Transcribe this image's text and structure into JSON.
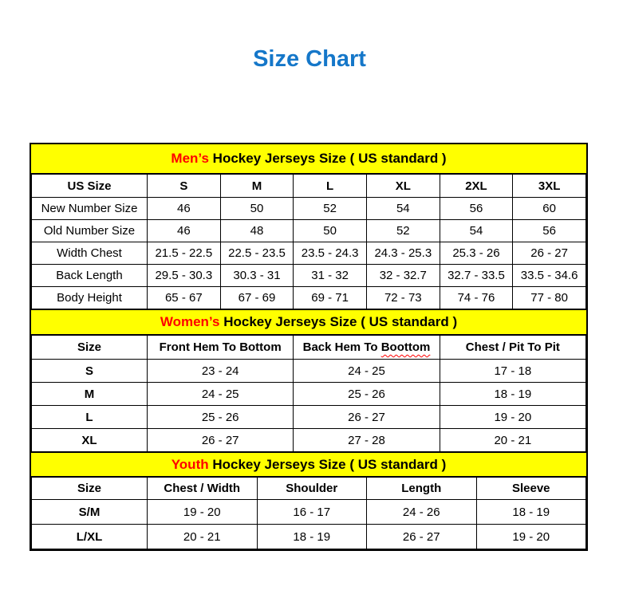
{
  "page_title": "Size Chart",
  "colors": {
    "title_text": "#1577C9",
    "section_band_bg": "#FFFF00",
    "section_accent_text": "#FF0000",
    "table_border": "#000000",
    "spellcheck_underline": "#FF0000"
  },
  "tables": [
    {
      "id": "mens",
      "band": {
        "accent": "Men’s",
        "rest": " Hockey Jerseys Size ( US standard )"
      },
      "columns": [
        "US Size",
        "S",
        "M",
        "L",
        "XL",
        "2XL",
        "3XL"
      ],
      "rows": [
        {
          "label": "New Number Size",
          "values": [
            "46",
            "50",
            "52",
            "54",
            "56",
            "60"
          ]
        },
        {
          "label": "Old Number Size",
          "values": [
            "46",
            "48",
            "50",
            "52",
            "54",
            "56"
          ]
        },
        {
          "label": "Width Chest",
          "values": [
            "21.5 - 22.5",
            "22.5 - 23.5",
            "23.5 - 24.3",
            "24.3 - 25.3",
            "25.3 - 26",
            "26 - 27"
          ]
        },
        {
          "label": "Back Length",
          "values": [
            "29.5 - 30.3",
            "30.3 - 31",
            "31 - 32",
            "32 - 32.7",
            "32.7 - 33.5",
            "33.5 - 34.6"
          ]
        },
        {
          "label": "Body Height",
          "values": [
            "65 - 67",
            "67 - 69",
            "69 - 71",
            "72 - 73",
            "74 - 76",
            "77 - 80"
          ]
        }
      ]
    },
    {
      "id": "womens",
      "band": {
        "accent": "Women’s",
        "rest": " Hockey Jerseys Size ( US standard )"
      },
      "columns": [
        "Size",
        "Front Hem To Bottom",
        "Back Hem To Boottom",
        "Chest / Pit To Pit"
      ],
      "spellcheck": {
        "column_index": 2,
        "prefix": "Back Hem To ",
        "word": "Boottom"
      },
      "rows": [
        {
          "label": "S",
          "values": [
            "23 - 24",
            "24 - 25",
            "17 - 18"
          ]
        },
        {
          "label": "M",
          "values": [
            "24 - 25",
            "25 - 26",
            "18 - 19"
          ]
        },
        {
          "label": "L",
          "values": [
            "25 - 26",
            "26 - 27",
            "19 - 20"
          ]
        },
        {
          "label": "XL",
          "values": [
            "26 - 27",
            "27 - 28",
            "20 - 21"
          ]
        }
      ]
    },
    {
      "id": "youth",
      "band": {
        "accent": "Youth",
        "rest": " Hockey Jerseys Size ( US standard )"
      },
      "columns": [
        "Size",
        "Chest / Width",
        "Shoulder",
        "Length",
        "Sleeve"
      ],
      "rows": [
        {
          "label": "S/M",
          "values": [
            "19 - 20",
            "16 - 17",
            "24 - 26",
            "18 - 19"
          ]
        },
        {
          "label": "L/XL",
          "values": [
            "20 - 21",
            "18 - 19",
            "26 - 27",
            "19 - 20"
          ]
        }
      ]
    }
  ]
}
